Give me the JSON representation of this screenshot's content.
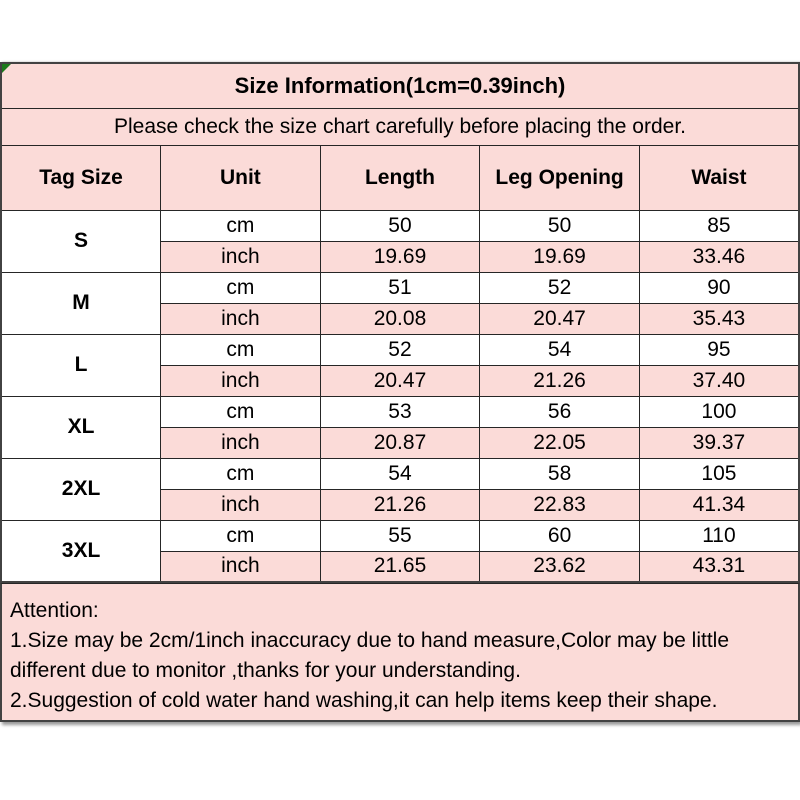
{
  "title": "Size Information(1cm=0.39inch)",
  "subtitle": "Please check the size chart carefully before placing the order.",
  "table": {
    "headers": [
      "Tag Size",
      "Unit",
      "Length",
      "Leg Opening",
      "Waist"
    ],
    "units": {
      "cm": "cm",
      "inch": "inch"
    },
    "rows": [
      {
        "tag": "S",
        "cm": [
          "50",
          "50",
          "85"
        ],
        "inch": [
          "19.69",
          "19.69",
          "33.46"
        ]
      },
      {
        "tag": "M",
        "cm": [
          "51",
          "52",
          "90"
        ],
        "inch": [
          "20.08",
          "20.47",
          "35.43"
        ]
      },
      {
        "tag": "L",
        "cm": [
          "52",
          "54",
          "95"
        ],
        "inch": [
          "20.47",
          "21.26",
          "37.40"
        ]
      },
      {
        "tag": "XL",
        "cm": [
          "53",
          "56",
          "100"
        ],
        "inch": [
          "20.87",
          "22.05",
          "39.37"
        ]
      },
      {
        "tag": "2XL",
        "cm": [
          "54",
          "58",
          "105"
        ],
        "inch": [
          "21.26",
          "22.83",
          "41.34"
        ]
      },
      {
        "tag": "3XL",
        "cm": [
          "55",
          "60",
          "110"
        ],
        "inch": [
          "21.65",
          "23.62",
          "43.31"
        ]
      }
    ]
  },
  "attention": {
    "heading": "Attention:",
    "line1": "1.Size may be 2cm/1inch inaccuracy due to hand measure,Color may be little different due to monitor ,thanks for your understanding.",
    "line2": "2.Suggestion of cold water hand washing,it can help items keep their shape."
  },
  "colors": {
    "row_pink": "#fbdbd8",
    "row_white": "#ffffff",
    "grid_border": "#262626",
    "outer_border": "#424242",
    "text": "#000000",
    "corner_marker_green": "#1c7a1c"
  }
}
